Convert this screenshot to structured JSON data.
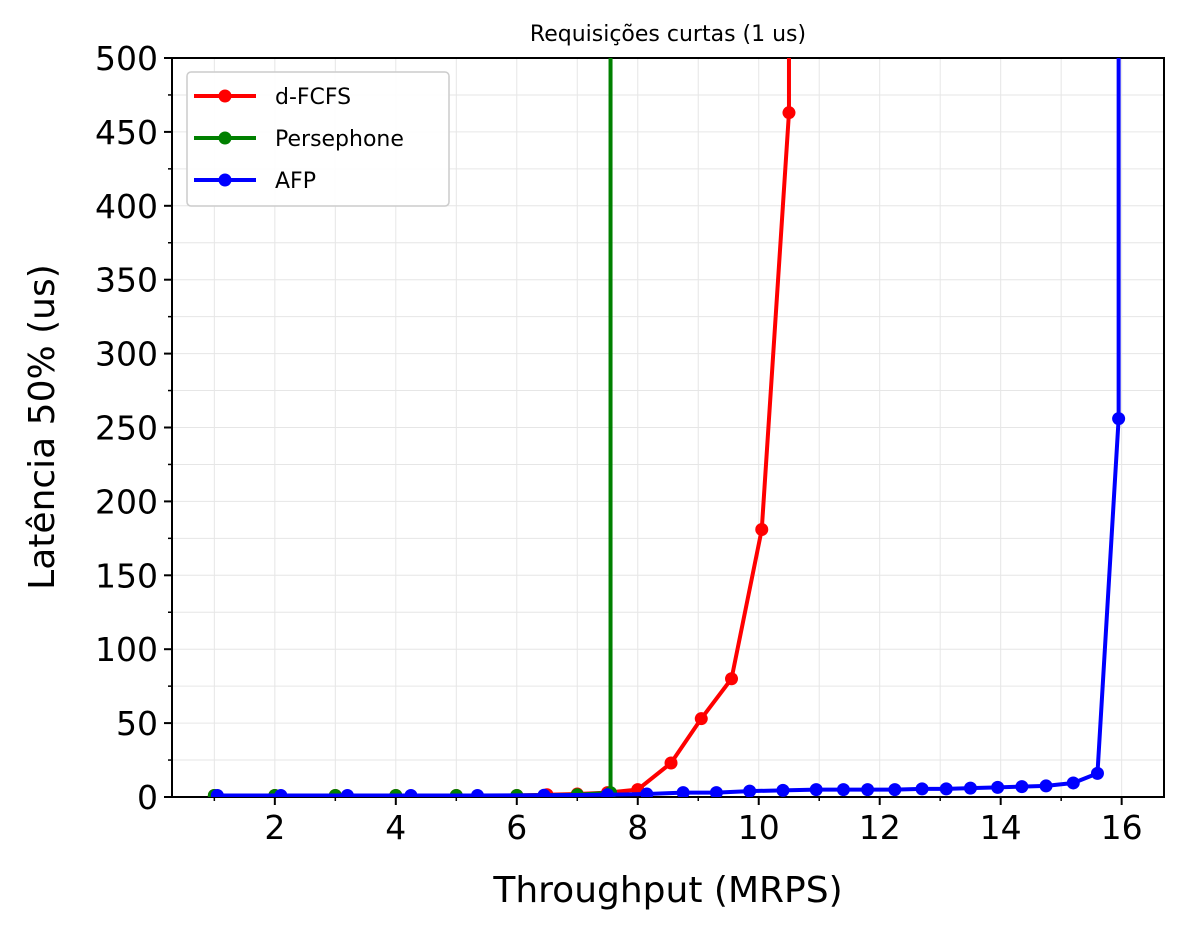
{
  "chart_data": {
    "type": "line",
    "title": "Requisições curtas (1 us)",
    "xlabel": "Throughput (MRPS)",
    "ylabel": "Latência 50% (us)",
    "xlim": [
      0.3,
      16.7
    ],
    "ylim": [
      0,
      500
    ],
    "xticks": [
      2,
      4,
      6,
      8,
      10,
      12,
      14,
      16
    ],
    "yticks": [
      0,
      50,
      100,
      150,
      200,
      250,
      300,
      350,
      400,
      450,
      500
    ],
    "grid": true,
    "legend_position": "top-left",
    "series": [
      {
        "name": "d-FCFS",
        "color": "#ff0000",
        "x": [
          1.0,
          2.0,
          3.0,
          4.0,
          5.0,
          6.0,
          6.5,
          7.0,
          7.5,
          8.0,
          8.55,
          9.05,
          9.55,
          10.05,
          10.5,
          10.5
        ],
        "y": [
          1,
          1,
          1,
          1,
          1,
          1,
          1.5,
          2,
          3,
          5,
          23,
          53,
          80,
          181,
          463,
          500
        ]
      },
      {
        "name": "Persephone",
        "color": "#008000",
        "x": [
          1.0,
          2.0,
          3.0,
          4.0,
          5.0,
          6.0,
          7.0,
          7.55,
          7.55
        ],
        "y": [
          1,
          1,
          1,
          1,
          1,
          1,
          1.5,
          3,
          500
        ]
      },
      {
        "name": "AFP",
        "color": "#0000ff",
        "x": [
          1.05,
          2.1,
          3.2,
          4.25,
          5.35,
          6.45,
          7.5,
          8.15,
          8.75,
          9.3,
          9.85,
          10.4,
          10.95,
          11.4,
          11.8,
          12.25,
          12.7,
          13.1,
          13.5,
          13.95,
          14.35,
          14.75,
          15.2,
          15.6,
          15.95,
          15.95
        ],
        "y": [
          1,
          1,
          1,
          1,
          1,
          1.2,
          1.5,
          2,
          3,
          3,
          4,
          4.5,
          5,
          5,
          5,
          5,
          5.5,
          5.5,
          6,
          6.5,
          7,
          7.5,
          9.5,
          16,
          256,
          500
        ]
      }
    ]
  }
}
